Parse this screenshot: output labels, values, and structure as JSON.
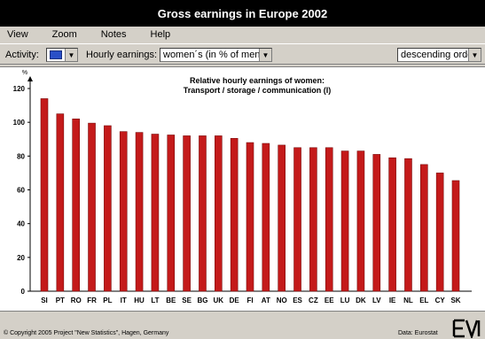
{
  "window": {
    "title": "Gross earnings in Europe 2002"
  },
  "menu": {
    "items": [
      "View",
      "Zoom",
      "Notes",
      "Help"
    ]
  },
  "toolbar": {
    "activity_label": "Activity:",
    "activity_color": "#2a4fc7",
    "hourly_label": "Hourly earnings:",
    "hourly_value": "women´s (in % of men´s)",
    "order_value": "descending order"
  },
  "chart_data": {
    "type": "bar",
    "title": "Relative hourly earnings of women:",
    "subtitle": "Transport / storage / communication (I)",
    "ylabel": "%",
    "ylim": [
      0,
      120
    ],
    "yticks": [
      0,
      20,
      40,
      60,
      80,
      100,
      120
    ],
    "grid": false,
    "bar_color": "#c41a1a",
    "categories": [
      "SI",
      "PT",
      "RO",
      "FR",
      "PL",
      "IT",
      "HU",
      "LT",
      "BE",
      "SE",
      "BG",
      "UK",
      "DE",
      "FI",
      "AT",
      "NO",
      "ES",
      "CZ",
      "EE",
      "LU",
      "DK",
      "LV",
      "IE",
      "NL",
      "EL",
      "CY",
      "SK"
    ],
    "values": [
      114,
      105,
      102,
      99.5,
      98,
      94.5,
      94,
      93,
      92.5,
      92,
      92,
      92,
      90.5,
      88,
      87.5,
      86.5,
      85,
      85,
      85,
      83,
      83,
      81,
      79,
      78.5,
      75,
      70,
      65.5
    ]
  },
  "footer": {
    "copyright": "© Copyright 2005 Project \"New Statistics\", Hagen, Germany",
    "source": "Data: Eurostat"
  }
}
